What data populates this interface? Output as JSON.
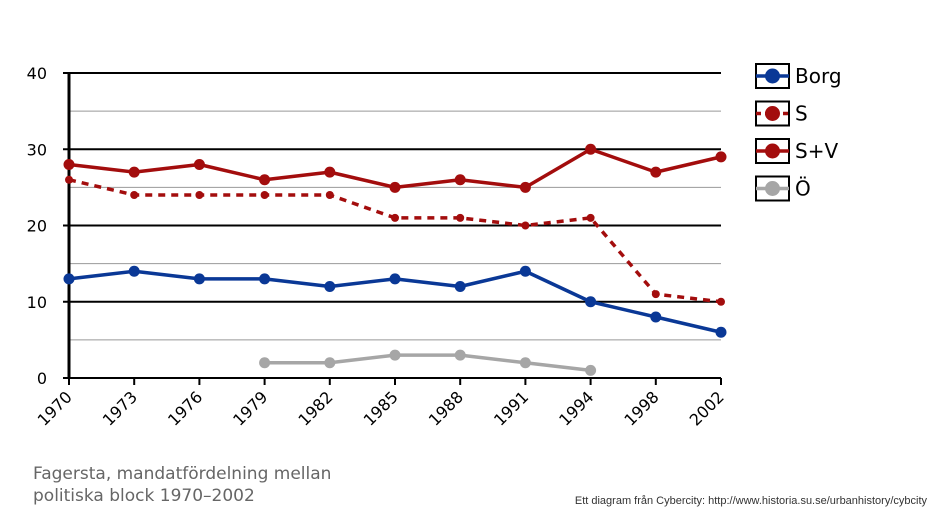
{
  "chart_data": {
    "type": "line",
    "categories": [
      "1970",
      "1973",
      "1976",
      "1979",
      "1982",
      "1985",
      "1988",
      "1991",
      "1994",
      "1998",
      "2002"
    ],
    "ylim": [
      0,
      40
    ],
    "yticks": [
      0,
      10,
      20,
      30,
      40
    ],
    "series": [
      {
        "name": "Borg",
        "color": "#0a3896",
        "dashed": false,
        "values": [
          13,
          14,
          13,
          13,
          12,
          13,
          12,
          14,
          10,
          8,
          6
        ]
      },
      {
        "name": "S",
        "color": "#a30d0d",
        "dashed": true,
        "values": [
          26,
          24,
          24,
          24,
          24,
          21,
          21,
          20,
          21,
          11,
          10
        ]
      },
      {
        "name": "S+V",
        "color": "#a30d0d",
        "dashed": false,
        "values": [
          28,
          27,
          28,
          26,
          27,
          25,
          26,
          25,
          30,
          27,
          29
        ]
      },
      {
        "name": "Ö",
        "color": "#a6a6a6",
        "dashed": false,
        "values": [
          null,
          null,
          null,
          2,
          2,
          3,
          3,
          2,
          1,
          null,
          null
        ]
      }
    ],
    "title": "",
    "xlabel": "",
    "ylabel": ""
  },
  "caption": {
    "line1": "Fagersta, mandatfördelning mellan",
    "line2": "politiska block 1970–2002"
  },
  "credit": "Ett diagram från Cybercity: http://www.historia.su.se/urbanhistory/cybcity"
}
